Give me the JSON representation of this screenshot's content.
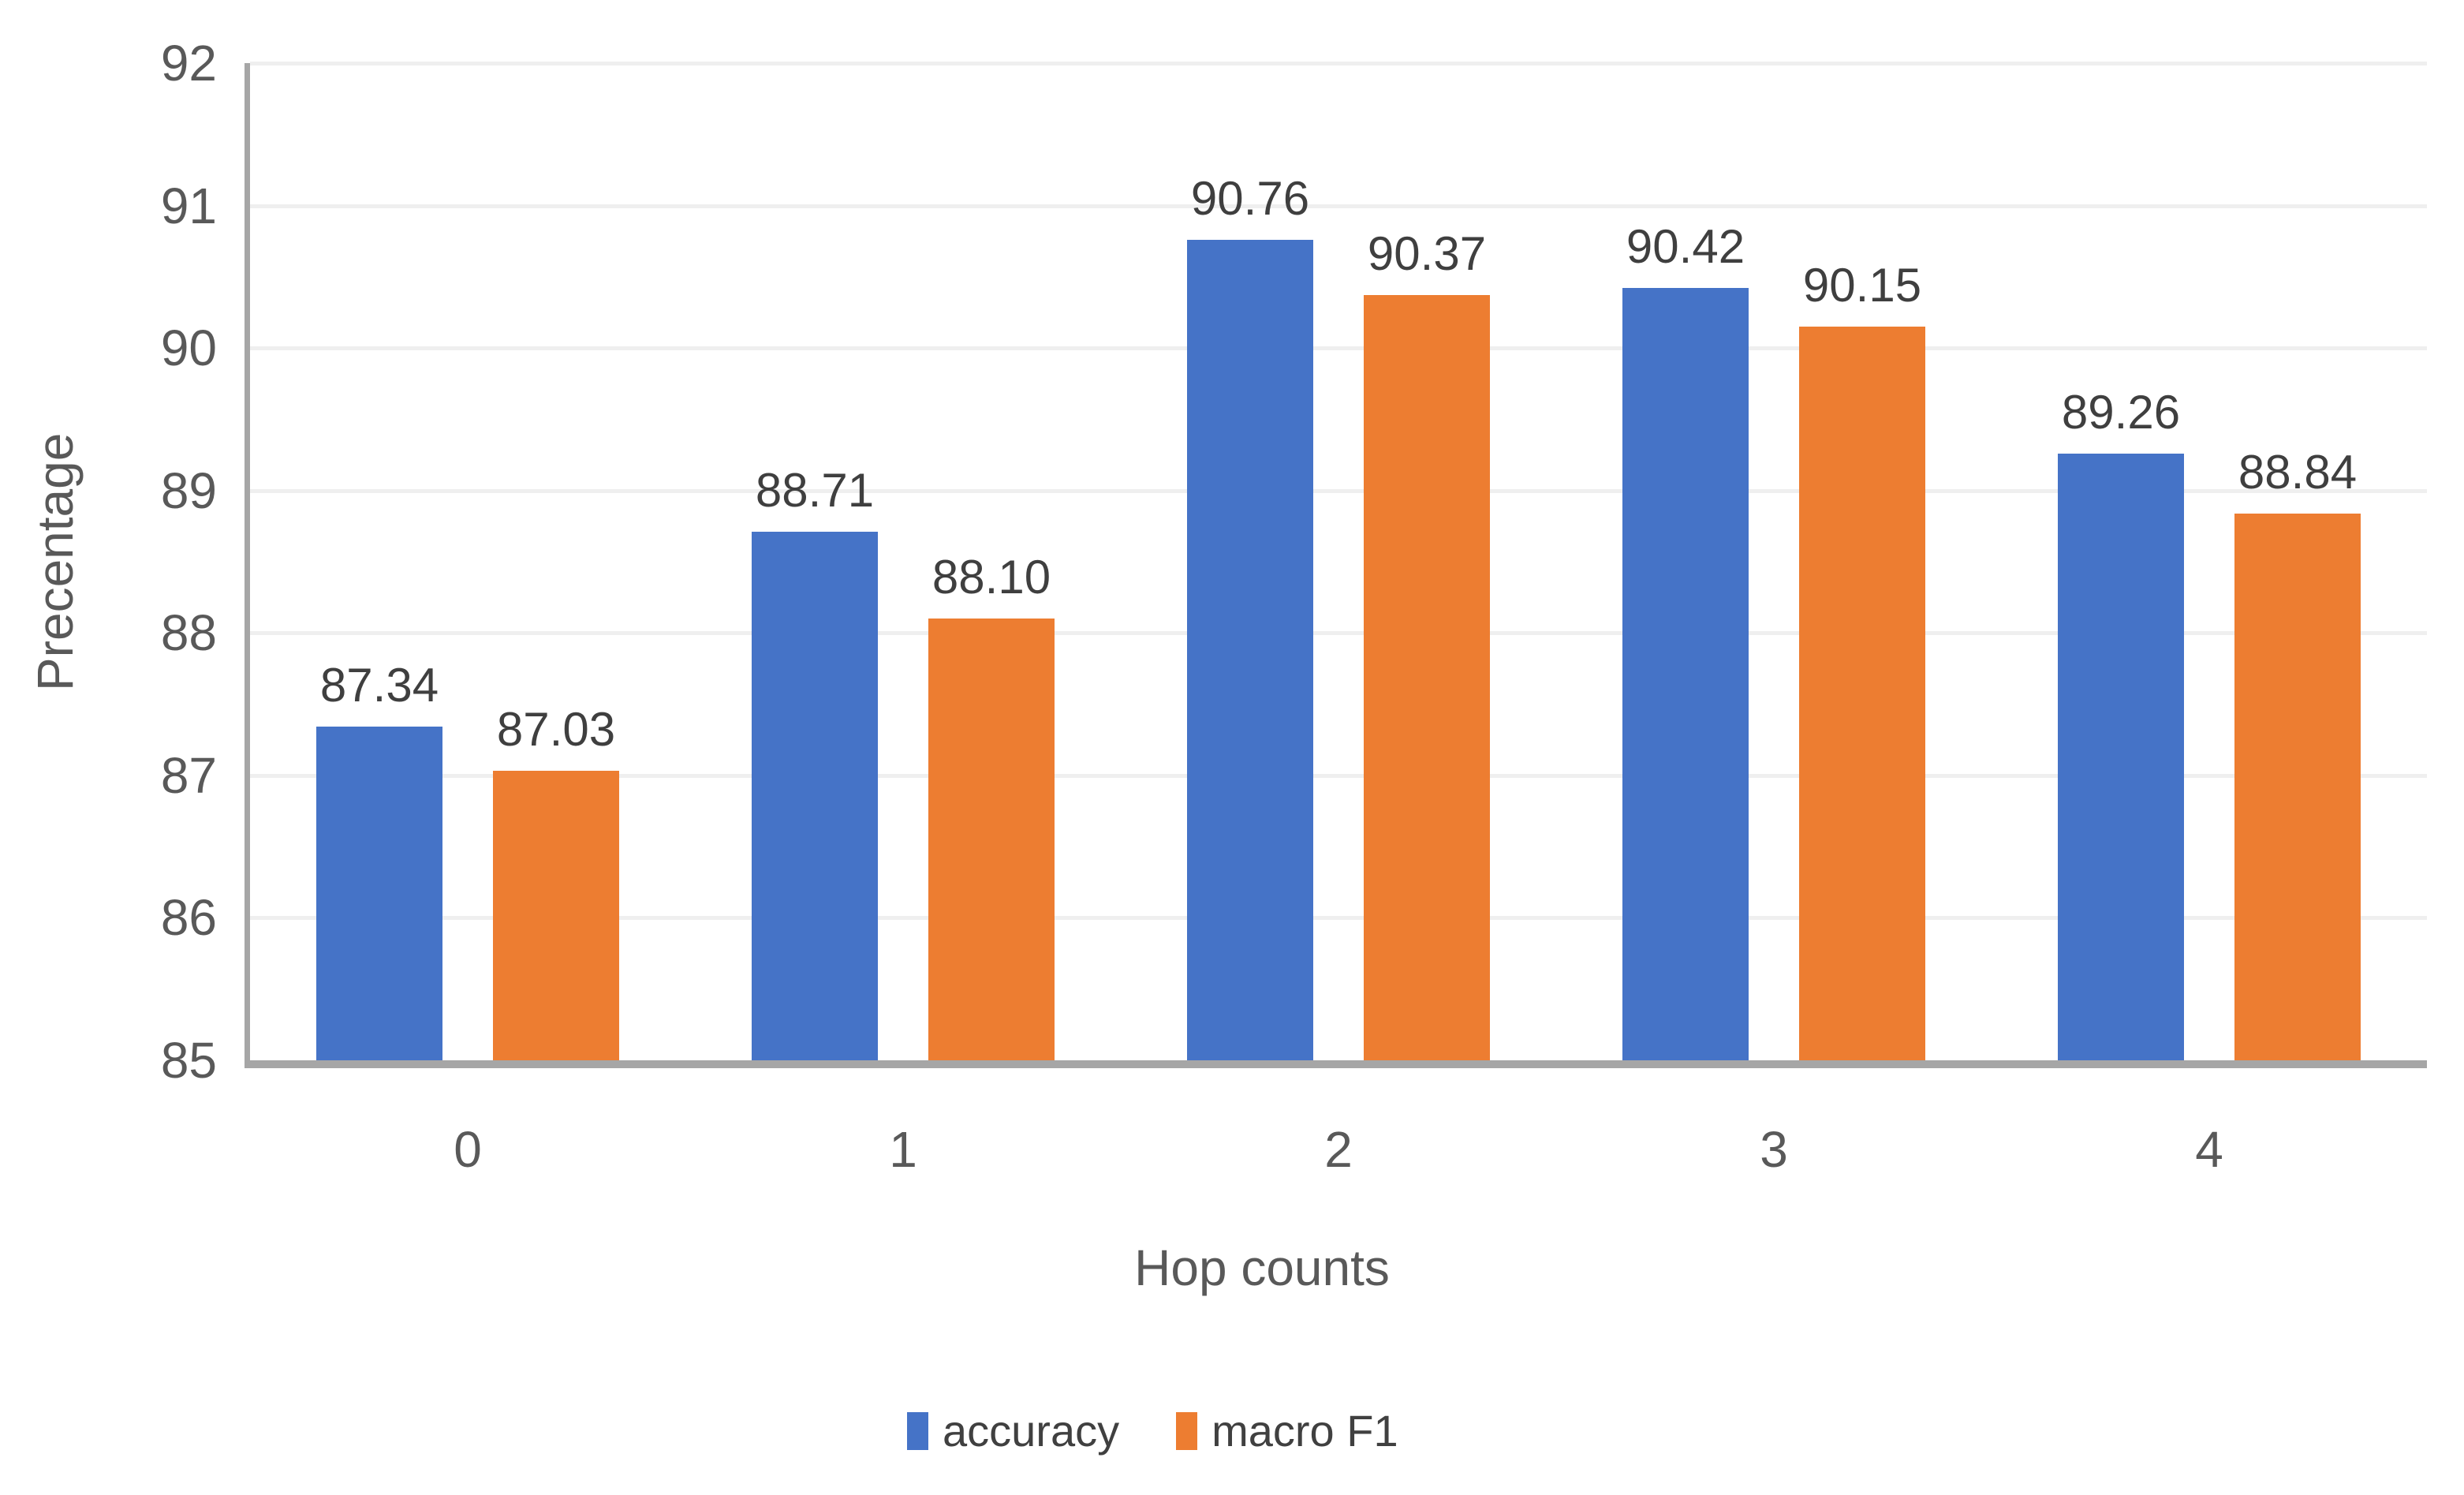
{
  "chart_data": {
    "type": "bar",
    "title": "",
    "categories": [
      "0",
      "1",
      "2",
      "3",
      "4"
    ],
    "series": [
      {
        "name": "accuracy",
        "color": "#4573c7",
        "values": [
          87.34,
          88.71,
          90.76,
          90.42,
          89.26
        ],
        "labels": [
          "87.34",
          "88.71",
          "90.76",
          "90.42",
          "89.26"
        ]
      },
      {
        "name": "macro F1",
        "color": "#ed7d31",
        "values": [
          87.03,
          88.1,
          90.37,
          90.15,
          88.84
        ],
        "labels": [
          "87.03",
          "88.10",
          "90.37",
          "90.15",
          "88.84"
        ]
      }
    ],
    "xlabel": "Hop counts",
    "ylabel": "Precentage",
    "ylim": [
      85,
      92
    ],
    "yticks": [
      "92",
      "91",
      "90",
      "89",
      "88",
      "87",
      "86",
      "85"
    ],
    "grid": true,
    "legend_position": "bottom",
    "value_labels_shown": true
  },
  "colors": {
    "accuracy_bar": "#4573c7",
    "macro_f1_bar": "#ed7d31",
    "gridline": "#efefef",
    "axis_line": "#a6a6a6",
    "tick_text": "#595959",
    "value_label_text": "#3f3f3f",
    "legend_text": "#404040",
    "background": "#ffffff"
  }
}
